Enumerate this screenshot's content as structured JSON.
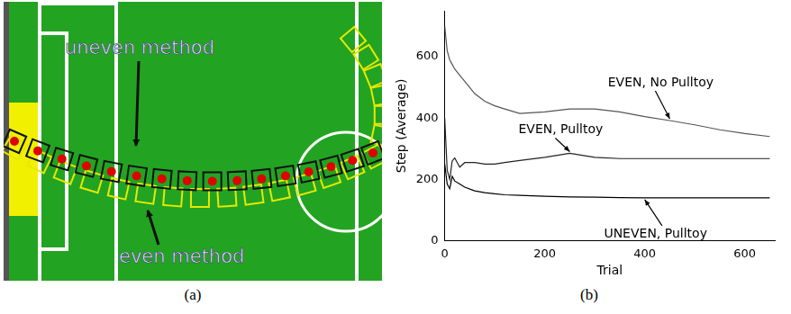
{
  "figure_a": {
    "caption": "(a)",
    "labels": [
      "uneven method",
      "even method"
    ]
  },
  "chart_data": {
    "type": "line",
    "caption": "(b)",
    "x_label": "Trial",
    "y_label": "Step (Average)",
    "x": [
      0,
      5,
      10,
      15,
      20,
      30,
      40,
      60,
      80,
      100,
      120,
      150,
      200,
      250,
      300,
      350,
      400,
      450,
      500,
      550,
      600,
      650
    ],
    "xlim": [
      0,
      660
    ],
    "xticks": [
      0,
      200,
      400,
      600
    ],
    "ylim": [
      0,
      750
    ],
    "yticks": [
      0,
      200,
      400,
      600
    ],
    "grid": false,
    "series": [
      {
        "name": "EVEN, No Pulltoy",
        "color": "#555555",
        "line_style": "solid",
        "values": [
          700,
          620,
          590,
          575,
          560,
          540,
          520,
          480,
          455,
          440,
          430,
          415,
          420,
          430,
          430,
          420,
          405,
          392,
          378,
          362,
          350,
          340
        ]
      },
      {
        "name": "EVEN, Pulltoy",
        "color": "#222222",
        "line_style": "solid",
        "values": [
          400,
          230,
          200,
          260,
          270,
          240,
          255,
          255,
          250,
          250,
          255,
          262,
          272,
          285,
          272,
          268,
          268,
          268,
          268,
          268,
          268,
          268
        ]
      },
      {
        "name": "UNEVEN, Pulltoy",
        "color": "#000000",
        "line_style": "solid",
        "values": [
          250,
          185,
          170,
          210,
          195,
          185,
          175,
          163,
          157,
          153,
          150,
          148,
          145,
          143,
          142,
          141,
          140,
          140,
          140,
          140,
          140,
          140
        ]
      }
    ]
  }
}
